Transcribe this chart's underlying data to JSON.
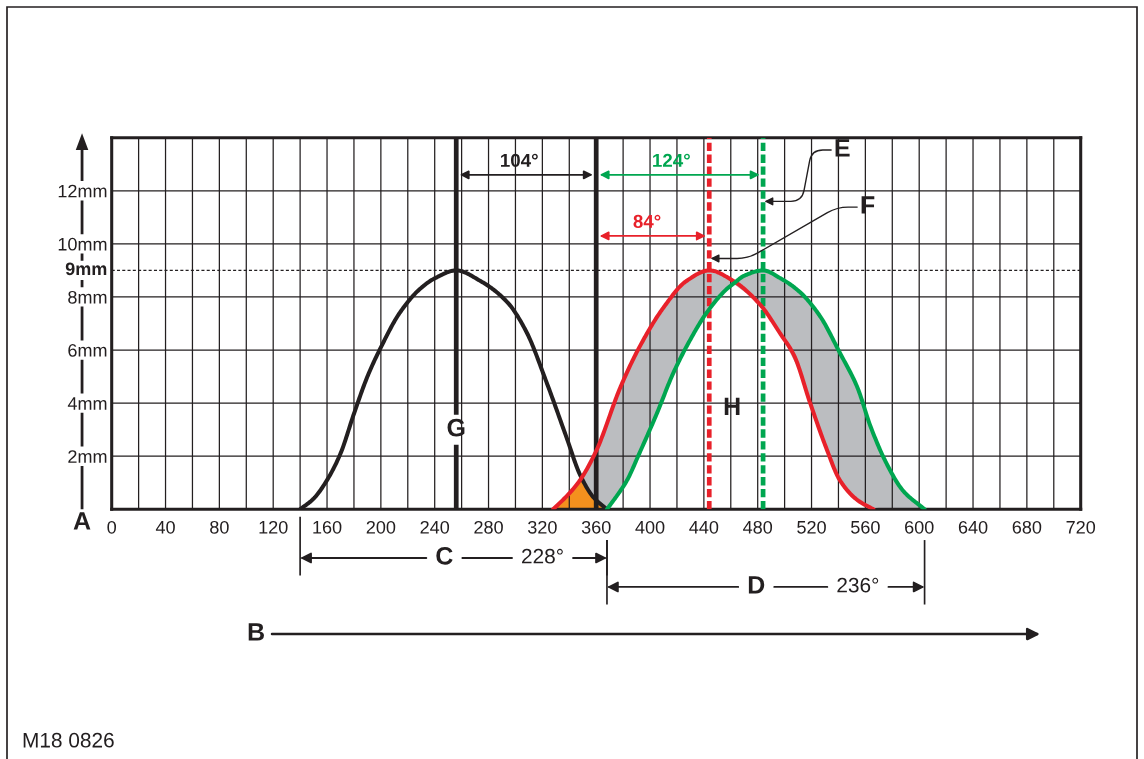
{
  "chart_data": {
    "type": "line",
    "xlim": [
      0,
      720
    ],
    "xticks": [
      0,
      {
        "value": 20,
        "label": null
      },
      40,
      {
        "value": 60,
        "label": null
      },
      80,
      {
        "value": 100,
        "label": null
      },
      120,
      {
        "value": 140,
        "label": null
      },
      160,
      {
        "value": 180,
        "label": null
      },
      200,
      {
        "value": 220,
        "label": null
      },
      240,
      {
        "value": 260,
        "label": null
      },
      280,
      {
        "value": 300,
        "label": null
      },
      320,
      {
        "value": 340,
        "label": null
      },
      360,
      {
        "value": 380,
        "label": null
      },
      400,
      {
        "value": 420,
        "label": null
      },
      440,
      {
        "value": 460,
        "label": null
      },
      480,
      {
        "value": 500,
        "label": null
      },
      520,
      {
        "value": 540,
        "label": null
      },
      560,
      {
        "value": 580,
        "label": null
      },
      600,
      {
        "value": 620,
        "label": null
      },
      640,
      {
        "value": 660,
        "label": null
      },
      680,
      {
        "value": 700,
        "label": null
      },
      720
    ],
    "ylim": [
      0,
      14
    ],
    "yticks": [
      {
        "value": 2,
        "label": "2mm"
      },
      {
        "value": 4,
        "label": "4mm"
      },
      {
        "value": 6,
        "label": "6mm"
      },
      {
        "value": 8,
        "label": "8mm"
      },
      {
        "value": 10,
        "label": "10mm"
      },
      {
        "value": 12,
        "label": "12mm"
      }
    ],
    "grid": true,
    "series": [
      {
        "type": "area",
        "color": "#f4901e",
        "x": [
          328,
          334,
          340,
          345,
          349,
          353,
          358,
          363,
          368
        ],
        "values": [
          0,
          0.25,
          0.6,
          0.9,
          1.2,
          0.85,
          0.45,
          0.15,
          0
        ]
      },
      {
        "color": "#231f20",
        "x": [
          140,
          150,
          160,
          170,
          180,
          190,
          200,
          214,
          229,
          240,
          256,
          274,
          294,
          308,
          323,
          338,
          348,
          358,
          368
        ],
        "values": [
          0,
          0.4,
          1.1,
          2.1,
          3.6,
          5.0,
          6.1,
          7.4,
          8.3,
          8.7,
          9.0,
          8.6,
          7.8,
          6.7,
          4.8,
          2.7,
          1.3,
          0.45,
          0
        ]
      },
      {
        "color": "#e8212a",
        "x": [
          328,
          340,
          348,
          360,
          378,
          392,
          410,
          427,
          444,
          462,
          482,
          497,
          507,
          519,
          531,
          541,
          554,
          566
        ],
        "values": [
          0,
          0.6,
          1.1,
          2.2,
          4.6,
          6.1,
          7.6,
          8.6,
          9.0,
          8.6,
          7.7,
          6.6,
          5.8,
          4.0,
          2.3,
          1.1,
          0.35,
          0
        ]
      },
      {
        "color": "#00a650",
        "x": [
          349,
          353,
          358,
          363,
          368,
          378,
          383,
          392,
          405,
          417,
          430,
          442,
          457,
          462,
          470,
          484,
          497,
          511,
          526,
          541,
          554,
          564,
          576,
          588,
          604
        ],
        "values": [
          null,
          null,
          null,
          null,
          0,
          0.7,
          1.1,
          2.1,
          3.6,
          5.1,
          6.4,
          7.4,
          8.3,
          8.5,
          8.8,
          9.0,
          8.7,
          8.2,
          7.3,
          5.9,
          4.6,
          3.1,
          1.7,
          0.7,
          0
        ],
        "lower": [
          1.2,
          0.85,
          0.45,
          0.15,
          0,
          0.7,
          1.1,
          2.1,
          3.6,
          5.1,
          6.4,
          7.4,
          8.3,
          8.5,
          8.2,
          7.6,
          6.6,
          5.2,
          3.0,
          1.1,
          0.35,
          0.1,
          0,
          0,
          0
        ],
        "upper": [
          1.2,
          1.5,
          2.0,
          2.55,
          3.3,
          4.6,
          5.1,
          6.1,
          7.2,
          8.0,
          8.7,
          9.0,
          8.75,
          8.6,
          8.8,
          9.0,
          8.7,
          8.2,
          7.3,
          5.9,
          4.6,
          3.1,
          1.7,
          0.7,
          0
        ]
      }
    ],
    "ref_lines": [
      {
        "axis": "x",
        "value": 256,
        "color": "#231f20"
      },
      {
        "axis": "x",
        "value": 360,
        "color": "#231f20"
      },
      {
        "axis": "x",
        "value": 444,
        "color": "#e8212a",
        "line_style": "dashed"
      },
      {
        "axis": "x",
        "value": 484,
        "color": "#00a650",
        "line_style": "dashed"
      },
      {
        "axis": "y",
        "value": 9,
        "label": "9mm",
        "color": "#231f20",
        "line_style": "dotted"
      }
    ],
    "annotations": [
      "104°",
      "124°",
      "84°",
      {
        "text": "E",
        "x": 484,
        "y": 11.6
      },
      {
        "text": "F",
        "x": 444,
        "y": 9.45
      },
      "G",
      "H",
      "A",
      "B",
      "C",
      "228°",
      "D",
      "236°",
      "M18 0826"
    ]
  }
}
